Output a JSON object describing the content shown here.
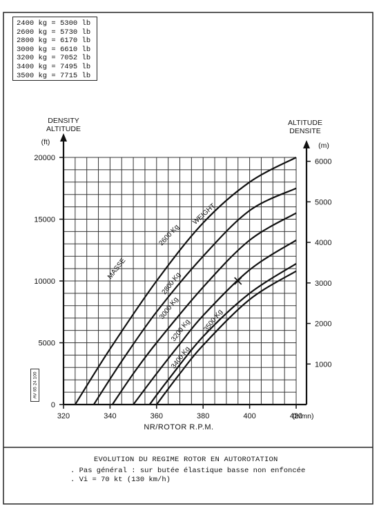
{
  "conversion_table": [
    "2400 kg = 5300 lb",
    "2600 kg = 5730 lb",
    "2800 kg = 6170 lb",
    "3000 kg = 6610 lb",
    "3200 kg = 7052 lb",
    "3400 kg = 7495 lb",
    "3500 kg = 7715 lb"
  ],
  "doc_ref": "AV 65 24 100",
  "caption": {
    "title": "EVOLUTION DU REGIME ROTOR EN AUTOROTATION",
    "line1": ". Pas général : sur butée élastique basse non enfoncée",
    "line2": ". Vi = 70 kt (130 km/h)"
  },
  "chart_data": {
    "type": "line",
    "xlabel": "NR/ROTOR R.P.M.",
    "x_unit": "(tr/mn)",
    "xlim": [
      320,
      420
    ],
    "x_ticks": [
      "320",
      "340",
      "360",
      "380",
      "400",
      "420"
    ],
    "ylabel_left": [
      "DENSITY",
      "ALTITUDE"
    ],
    "y_unit_left": "(ft)",
    "ylim_left": [
      0,
      20000
    ],
    "y_ticks_left": [
      "0",
      "5000",
      "10000",
      "15000",
      "20000"
    ],
    "ylabel_right": [
      "ALTITUDE",
      "DENSITE"
    ],
    "y_unit_right": "(m)",
    "y_ticks_right": [
      "1000",
      "2000",
      "3000",
      "4000",
      "5000",
      "6000"
    ],
    "y_ticks_right_values": [
      1000,
      2000,
      3000,
      4000,
      5000,
      6000
    ],
    "grid": true,
    "curve_annotation": "MASSE 2600 Kg WEIGHT",
    "series": [
      {
        "name": "2600 Kg",
        "label": "2600 Kg",
        "x": [
          325,
          340,
          360,
          380,
          400,
          420
        ],
        "y": [
          0,
          4500,
          10000,
          14700,
          18000,
          20000
        ]
      },
      {
        "name": "2800 Kg",
        "label": "2800 Kg",
        "x": [
          333,
          345,
          360,
          380,
          400,
          420
        ],
        "y": [
          0,
          3500,
          7500,
          12000,
          15700,
          17500
        ]
      },
      {
        "name": "3000 Kg",
        "label": "3000 Kg",
        "x": [
          341,
          350,
          360,
          380,
          400,
          420
        ],
        "y": [
          0,
          2500,
          5000,
          9500,
          13300,
          15500
        ]
      },
      {
        "name": "3200 Kg",
        "label": "3200 Kg",
        "x": [
          350,
          360,
          370,
          380,
          400,
          420
        ],
        "y": [
          0,
          2500,
          4900,
          7200,
          10900,
          13300
        ]
      },
      {
        "name": "3400 Kg",
        "label": "3400 Kg",
        "x": [
          357,
          365,
          380,
          400,
          420
        ],
        "y": [
          0,
          2000,
          5500,
          9000,
          11400
        ]
      },
      {
        "name": "3500 Kg",
        "label": "3500 Kg",
        "x": [
          360,
          370,
          380,
          400,
          420
        ],
        "y": [
          0,
          2500,
          4800,
          8500,
          10800
        ]
      }
    ],
    "marker": {
      "x": 395,
      "y": 10000
    }
  }
}
